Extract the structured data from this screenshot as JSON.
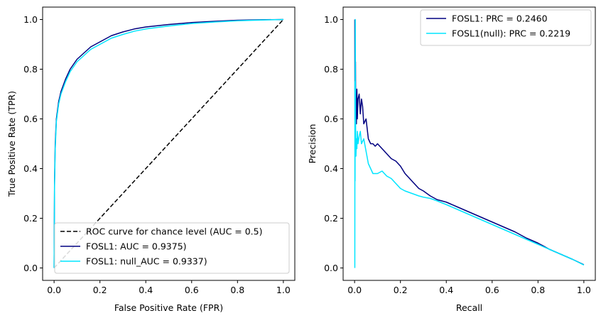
{
  "chart_data": [
    {
      "type": "line",
      "xlabel": "False Positive Rate (FPR)",
      "ylabel": "True Positive Rate (TPR)",
      "xlim": [
        -0.05,
        1.05
      ],
      "ylim": [
        -0.05,
        1.05
      ],
      "xticks": [
        "0.0",
        "0.2",
        "0.4",
        "0.6",
        "0.8",
        "1.0"
      ],
      "yticks": [
        "0.0",
        "0.2",
        "0.4",
        "0.6",
        "0.8",
        "1.0"
      ],
      "grid": false,
      "legend_position": "lower-right",
      "series": [
        {
          "name": "ROC curve for chance level (AUC = 0.5)",
          "color": "#000000",
          "dash": true,
          "x": [
            0,
            1
          ],
          "y": [
            0,
            1
          ]
        },
        {
          "name": "FOSL1: AUC = 0.9375)",
          "color": "#000080",
          "dash": false,
          "x": [
            0,
            0.002,
            0.005,
            0.01,
            0.02,
            0.03,
            0.05,
            0.07,
            0.1,
            0.13,
            0.16,
            0.2,
            0.25,
            0.3,
            0.35,
            0.4,
            0.5,
            0.6,
            0.7,
            0.8,
            0.9,
            1.0
          ],
          "y": [
            0,
            0.35,
            0.5,
            0.6,
            0.67,
            0.71,
            0.76,
            0.8,
            0.84,
            0.865,
            0.89,
            0.91,
            0.935,
            0.95,
            0.962,
            0.97,
            0.98,
            0.988,
            0.993,
            0.997,
            0.999,
            1.0
          ]
        },
        {
          "name": "FOSL1: null_AUC = 0.9337)",
          "color": "#00e5ff",
          "dash": false,
          "x": [
            0,
            0.002,
            0.005,
            0.01,
            0.02,
            0.03,
            0.05,
            0.07,
            0.1,
            0.13,
            0.16,
            0.2,
            0.25,
            0.3,
            0.35,
            0.4,
            0.5,
            0.6,
            0.7,
            0.8,
            0.9,
            1.0
          ],
          "y": [
            0,
            0.33,
            0.48,
            0.59,
            0.66,
            0.7,
            0.75,
            0.79,
            0.83,
            0.855,
            0.88,
            0.9,
            0.925,
            0.94,
            0.953,
            0.962,
            0.974,
            0.984,
            0.99,
            0.995,
            0.998,
            1.0
          ]
        }
      ]
    },
    {
      "type": "line",
      "xlabel": "Recall",
      "ylabel": "Precision",
      "xlim": [
        -0.05,
        1.05
      ],
      "ylim": [
        -0.05,
        1.05
      ],
      "xticks": [
        "0.0",
        "0.2",
        "0.4",
        "0.6",
        "0.8",
        "1.0"
      ],
      "yticks": [
        "0.0",
        "0.2",
        "0.4",
        "0.6",
        "0.8",
        "1.0"
      ],
      "grid": false,
      "legend_position": "upper-right",
      "series": [
        {
          "name": "FOSL1: PRC = 0.2460",
          "color": "#000080",
          "dash": false,
          "x": [
            0.001,
            0.002,
            0.003,
            0.004,
            0.005,
            0.006,
            0.008,
            0.01,
            0.012,
            0.015,
            0.02,
            0.025,
            0.03,
            0.035,
            0.04,
            0.05,
            0.06,
            0.07,
            0.08,
            0.09,
            0.1,
            0.12,
            0.14,
            0.16,
            0.18,
            0.2,
            0.22,
            0.25,
            0.28,
            0.3,
            0.33,
            0.36,
            0.4,
            0.45,
            0.5,
            0.55,
            0.6,
            0.65,
            0.7,
            0.75,
            0.8,
            0.85,
            0.9,
            0.95,
            1.0
          ],
          "y": [
            1.0,
            0.5,
            0.7,
            0.83,
            0.62,
            0.65,
            0.58,
            0.72,
            0.6,
            0.68,
            0.7,
            0.62,
            0.68,
            0.65,
            0.58,
            0.6,
            0.52,
            0.5,
            0.5,
            0.49,
            0.5,
            0.48,
            0.46,
            0.44,
            0.43,
            0.41,
            0.38,
            0.35,
            0.32,
            0.31,
            0.29,
            0.275,
            0.265,
            0.245,
            0.225,
            0.205,
            0.185,
            0.165,
            0.145,
            0.12,
            0.1,
            0.075,
            0.055,
            0.035,
            0.013
          ]
        },
        {
          "name": "FOSL1(null): PRC = 0.2219",
          "color": "#00e5ff",
          "dash": false,
          "x": [
            0.001,
            0.0015,
            0.002,
            0.003,
            0.004,
            0.005,
            0.006,
            0.008,
            0.01,
            0.012,
            0.015,
            0.02,
            0.025,
            0.03,
            0.04,
            0.05,
            0.06,
            0.07,
            0.08,
            0.1,
            0.12,
            0.14,
            0.16,
            0.18,
            0.2,
            0.22,
            0.25,
            0.28,
            0.3,
            0.33,
            0.36,
            0.4,
            0.45,
            0.5,
            0.55,
            0.6,
            0.65,
            0.7,
            0.75,
            0.8,
            0.85,
            0.9,
            0.95,
            1.0
          ],
          "y": [
            0.0,
            0.75,
            0.35,
            1.0,
            0.62,
            0.5,
            0.45,
            0.52,
            0.48,
            0.55,
            0.5,
            0.53,
            0.55,
            0.5,
            0.52,
            0.47,
            0.42,
            0.4,
            0.38,
            0.38,
            0.39,
            0.37,
            0.36,
            0.34,
            0.32,
            0.31,
            0.3,
            0.29,
            0.285,
            0.28,
            0.27,
            0.255,
            0.235,
            0.215,
            0.195,
            0.175,
            0.155,
            0.135,
            0.115,
            0.095,
            0.075,
            0.055,
            0.035,
            0.012
          ]
        }
      ]
    }
  ]
}
